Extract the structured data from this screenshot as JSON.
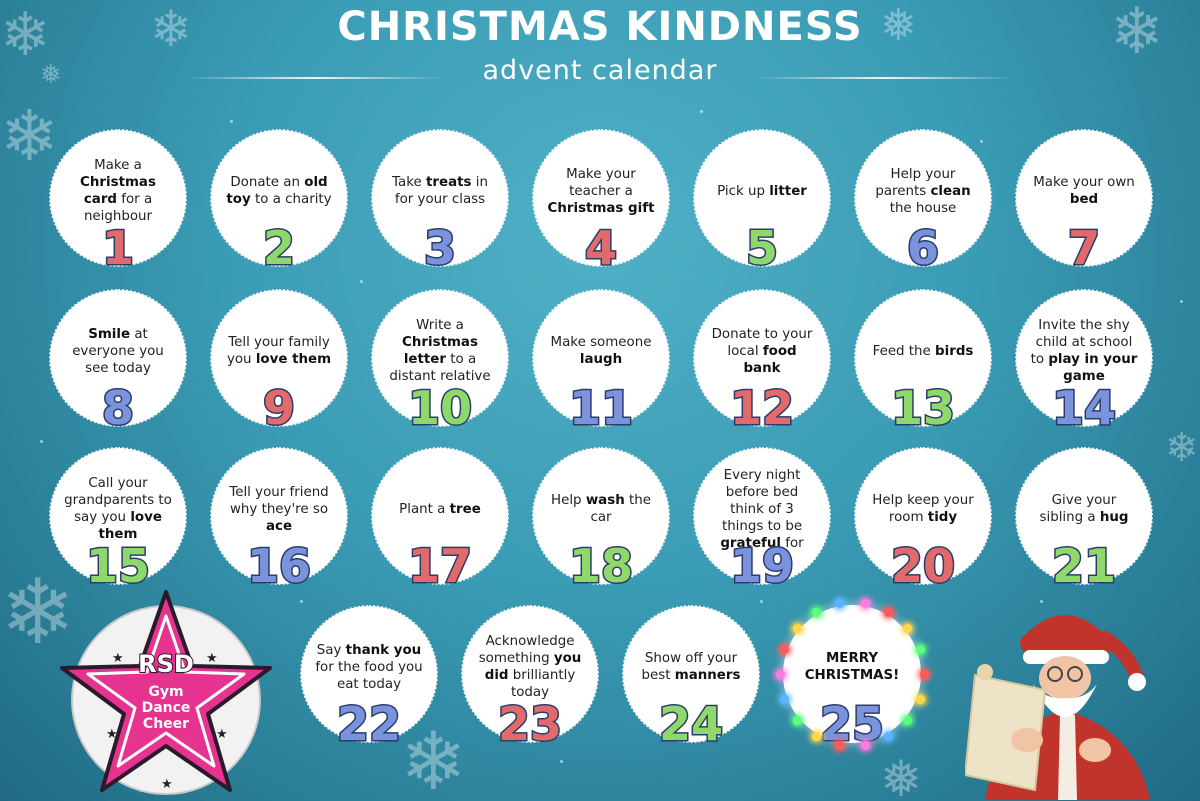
{
  "header": {
    "title": "CHRISTMAS KINDNESS",
    "subtitle": "advent calendar"
  },
  "days": [
    {
      "n": "1",
      "color": "red",
      "parts": [
        [
          "",
          "Make a "
        ],
        [
          "b",
          "Christmas card"
        ],
        [
          "",
          " for a neighbour"
        ]
      ]
    },
    {
      "n": "2",
      "color": "green",
      "parts": [
        [
          "",
          "Donate an "
        ],
        [
          "b",
          "old toy"
        ],
        [
          "",
          " to a charity"
        ]
      ]
    },
    {
      "n": "3",
      "color": "blue",
      "parts": [
        [
          "",
          "Take "
        ],
        [
          "b",
          "treats"
        ],
        [
          "",
          " in for your class"
        ]
      ]
    },
    {
      "n": "4",
      "color": "red",
      "parts": [
        [
          "",
          "Make your teacher a "
        ],
        [
          "b",
          "Christmas gift"
        ]
      ]
    },
    {
      "n": "5",
      "color": "green",
      "parts": [
        [
          "",
          "Pick up "
        ],
        [
          "b",
          "litter"
        ]
      ]
    },
    {
      "n": "6",
      "color": "blue",
      "parts": [
        [
          "",
          "Help your parents "
        ],
        [
          "b",
          "clean"
        ],
        [
          "",
          " the house"
        ]
      ]
    },
    {
      "n": "7",
      "color": "red",
      "parts": [
        [
          "",
          "Make your own "
        ],
        [
          "b",
          "bed"
        ]
      ]
    },
    {
      "n": "8",
      "color": "blue",
      "parts": [
        [
          "b",
          "Smile"
        ],
        [
          "",
          " at everyone you see today"
        ]
      ]
    },
    {
      "n": "9",
      "color": "red",
      "parts": [
        [
          "",
          "Tell your family you "
        ],
        [
          "b",
          "love them"
        ]
      ]
    },
    {
      "n": "10",
      "color": "green",
      "parts": [
        [
          "",
          "Write a "
        ],
        [
          "b",
          "Christmas letter"
        ],
        [
          "",
          " to a distant relative"
        ]
      ]
    },
    {
      "n": "11",
      "color": "blue",
      "parts": [
        [
          "",
          "Make someone "
        ],
        [
          "b",
          "laugh"
        ]
      ]
    },
    {
      "n": "12",
      "color": "red",
      "parts": [
        [
          "",
          "Donate to your local "
        ],
        [
          "b",
          "food bank"
        ]
      ]
    },
    {
      "n": "13",
      "color": "green",
      "parts": [
        [
          "",
          "Feed the "
        ],
        [
          "b",
          "birds"
        ]
      ]
    },
    {
      "n": "14",
      "color": "blue",
      "parts": [
        [
          "",
          "Invite the shy child at school to "
        ],
        [
          "b",
          "play in your game"
        ]
      ]
    },
    {
      "n": "15",
      "color": "green",
      "parts": [
        [
          "",
          "Call your grandparents to say you "
        ],
        [
          "b",
          "love them"
        ]
      ]
    },
    {
      "n": "16",
      "color": "blue",
      "parts": [
        [
          "",
          "Tell your friend why they're so "
        ],
        [
          "b",
          "ace"
        ]
      ]
    },
    {
      "n": "17",
      "color": "red",
      "parts": [
        [
          "",
          "Plant a "
        ],
        [
          "b",
          "tree"
        ]
      ]
    },
    {
      "n": "18",
      "color": "green",
      "parts": [
        [
          "",
          "Help "
        ],
        [
          "b",
          "wash"
        ],
        [
          "",
          " the car"
        ]
      ]
    },
    {
      "n": "19",
      "color": "blue",
      "parts": [
        [
          "",
          "Every night before bed think of 3 things to be "
        ],
        [
          "b",
          "grateful"
        ],
        [
          "",
          " for"
        ]
      ]
    },
    {
      "n": "20",
      "color": "red",
      "parts": [
        [
          "",
          "Help keep your room "
        ],
        [
          "b",
          "tidy"
        ]
      ]
    },
    {
      "n": "21",
      "color": "green",
      "parts": [
        [
          "",
          "Give your sibling a "
        ],
        [
          "b",
          "hug"
        ]
      ]
    },
    {
      "n": "22",
      "color": "blue",
      "parts": [
        [
          "",
          "Say "
        ],
        [
          "b",
          "thank you"
        ],
        [
          "",
          " for the food you eat today"
        ]
      ]
    },
    {
      "n": "23",
      "color": "red",
      "parts": [
        [
          "",
          "Acknowledge something "
        ],
        [
          "b",
          "you did"
        ],
        [
          "",
          " brilliantly today"
        ]
      ]
    },
    {
      "n": "24",
      "color": "green",
      "parts": [
        [
          "",
          "Show off your best "
        ],
        [
          "b",
          "manners"
        ]
      ]
    },
    {
      "n": "25",
      "color": "blue",
      "parts": [
        [
          "b",
          "MERRY CHRISTMAS!"
        ]
      ]
    }
  ],
  "logo": {
    "name": "RSD",
    "lines": [
      "Gym",
      "Dance",
      "Cheer"
    ]
  },
  "colors": {
    "red": "#e26a6a",
    "green": "#8fd96b",
    "blue": "#7a93dc",
    "logo_pink": "#e6338f",
    "background": "#3a9bb4"
  },
  "decorations": [
    "snowflake-icon",
    "santa-illustration",
    "fairy-lights"
  ]
}
